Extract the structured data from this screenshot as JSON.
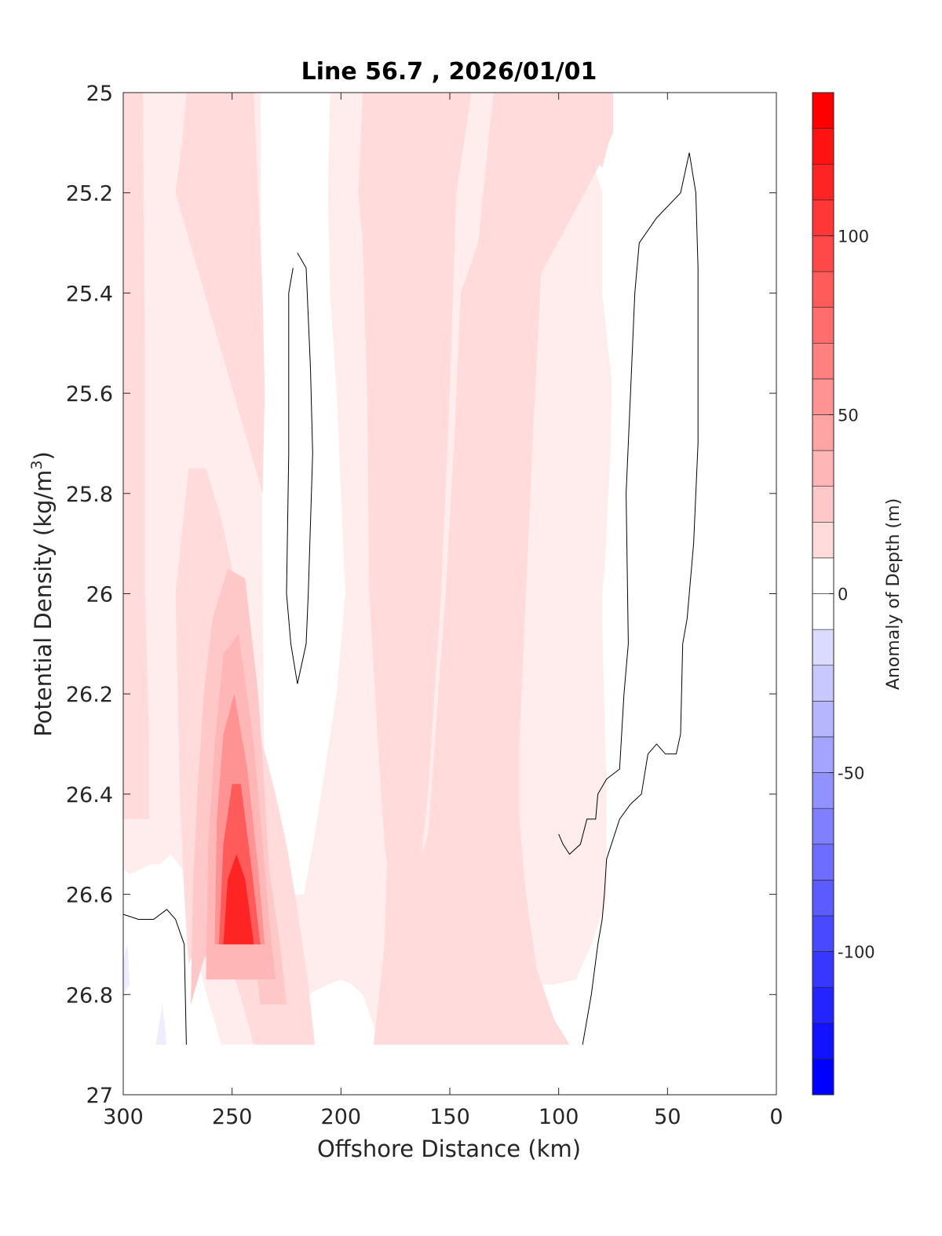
{
  "chart_data": {
    "type": "contour",
    "title": "Line 56.7 , 2026/01/01",
    "xlabel": "Offshore Distance (km)",
    "ylabel_prefix": "Potential Density (kg/m",
    "ylabel_sup": "3",
    "ylabel_suffix": ")",
    "xlim": [
      300,
      0
    ],
    "ylim": [
      27,
      25
    ],
    "x_reversed": true,
    "y_reversed": true,
    "xticks": [
      300,
      250,
      200,
      150,
      100,
      50,
      0
    ],
    "xtick_labels": [
      "300",
      "250",
      "200",
      "150",
      "100",
      "50",
      "0"
    ],
    "yticks": [
      25,
      25.2,
      25.4,
      25.6,
      25.8,
      26,
      26.2,
      26.4,
      26.6,
      26.8,
      27
    ],
    "ytick_labels": [
      "25",
      "25.2",
      "25.4",
      "25.6",
      "25.8",
      "26",
      "26.2",
      "26.4",
      "26.6",
      "26.8",
      "27"
    ],
    "grid": false,
    "colorbar": {
      "label": "Anomaly of Depth (m)",
      "clim": [
        -140,
        140
      ],
      "level_step": 10,
      "ticks": [
        -100,
        -50,
        0,
        50,
        100
      ],
      "tick_labels": [
        "-100",
        "-50",
        "0",
        "50",
        "100"
      ],
      "neg_color": "#0000ff",
      "pos_color": "#ff0000",
      "zero_color": "#ffffff"
    },
    "filled_regions": [
      {
        "anomaly": 10,
        "points": [
          [
            300,
            26.55
          ],
          [
            297,
            26.56
          ],
          [
            292,
            26.55
          ],
          [
            287,
            26.54
          ],
          [
            283,
            26.54
          ],
          [
            278,
            26.52
          ],
          [
            273,
            26.55
          ],
          [
            270,
            26.65
          ],
          [
            263,
            26.78
          ],
          [
            255,
            26.9
          ],
          [
            219,
            26.9
          ],
          [
            215,
            26.8
          ],
          [
            206,
            26.78
          ],
          [
            200,
            26.77
          ],
          [
            195,
            26.78
          ],
          [
            190,
            26.8
          ],
          [
            182,
            26.9
          ],
          [
            165,
            26.9
          ],
          [
            162,
            26.79
          ],
          [
            158,
            26.74
          ],
          [
            153,
            26.72
          ],
          [
            145,
            26.72
          ],
          [
            135,
            26.73
          ],
          [
            128,
            26.76
          ],
          [
            120,
            26.79
          ],
          [
            111,
            26.78
          ],
          [
            102,
            26.78
          ],
          [
            92,
            26.77
          ],
          [
            85,
            26.7
          ],
          [
            77,
            26.6
          ],
          [
            76,
            26.45
          ],
          [
            78,
            26.3
          ],
          [
            80,
            26.0
          ],
          [
            75,
            25.8
          ],
          [
            75,
            25.6
          ],
          [
            80,
            25.4
          ],
          [
            80,
            25.2
          ],
          [
            87,
            25.1
          ],
          [
            92,
            25.03
          ],
          [
            100,
            25.0
          ],
          [
            128,
            25.0
          ],
          [
            150,
            25.0
          ],
          [
            175,
            25.0
          ],
          [
            200,
            25.0
          ],
          [
            218,
            25.0
          ],
          [
            235,
            25.0
          ],
          [
            262,
            25.0
          ],
          [
            280,
            25.0
          ],
          [
            292,
            25.0
          ],
          [
            298,
            25.0
          ],
          [
            300,
            25.0
          ]
        ]
      },
      {
        "anomaly": -10,
        "points": [
          [
            300,
            26.73
          ],
          [
            298,
            26.7
          ],
          [
            297,
            26.78
          ],
          [
            300,
            26.8
          ]
        ]
      },
      {
        "anomaly": -10,
        "points": [
          [
            285,
            26.9
          ],
          [
            282,
            26.82
          ],
          [
            280,
            26.9
          ]
        ]
      },
      {
        "anomaly": 0,
        "points": [
          [
            272,
            25.0
          ],
          [
            260,
            25.0
          ],
          [
            237,
            25.0
          ],
          [
            236,
            26.0
          ],
          [
            235,
            26.4
          ],
          [
            233,
            26.45
          ],
          [
            225,
            26.6
          ],
          [
            217,
            26.6
          ],
          [
            212,
            26.48
          ],
          [
            202,
            26.2
          ],
          [
            198,
            26.0
          ],
          [
            200,
            25.8
          ],
          [
            202,
            25.6
          ],
          [
            205,
            25.4
          ],
          [
            206,
            25.2
          ],
          [
            205,
            25.0
          ]
        ]
      },
      {
        "anomaly": 0,
        "points": [
          [
            220,
            25.5
          ],
          [
            222,
            25.35
          ],
          [
            216,
            25.4
          ],
          [
            215,
            25.6
          ],
          [
            214,
            25.8
          ],
          [
            216,
            26.0
          ],
          [
            218,
            26.12
          ],
          [
            221,
            26.0
          ],
          [
            222,
            25.8
          ]
        ]
      },
      {
        "anomaly": 0,
        "points": [
          [
            80,
            26.05
          ],
          [
            76,
            25.7
          ],
          [
            75,
            25.35
          ],
          [
            74,
            25.1
          ],
          [
            80,
            25.0
          ],
          [
            50,
            25.0
          ],
          [
            44,
            25.02
          ],
          [
            36,
            25.2
          ],
          [
            33,
            25.5
          ],
          [
            31,
            25.8
          ],
          [
            34,
            26.1
          ],
          [
            33,
            26.5
          ],
          [
            26,
            26.58
          ],
          [
            40,
            26.62
          ],
          [
            48,
            26.7
          ],
          [
            60,
            26.75
          ],
          [
            68,
            26.82
          ],
          [
            74,
            26.85
          ],
          [
            78,
            26.82
          ],
          [
            78,
            26.4
          ]
        ]
      },
      {
        "anomaly": 20,
        "points": [
          [
            300,
            25.0
          ],
          [
            291,
            25.0
          ],
          [
            290,
            25.5
          ],
          [
            290,
            26.0
          ],
          [
            288,
            26.3
          ],
          [
            288,
            26.45
          ],
          [
            300,
            26.45
          ]
        ]
      },
      {
        "anomaly": 20,
        "points": [
          [
            276,
            25.2
          ],
          [
            273,
            25.1
          ],
          [
            271,
            25.0
          ],
          [
            240,
            25.0
          ],
          [
            238,
            25.2
          ],
          [
            236,
            25.4
          ],
          [
            235,
            25.6
          ],
          [
            236,
            25.8
          ]
        ]
      },
      {
        "anomaly": 20,
        "points": [
          [
            176,
            25.0
          ],
          [
            190,
            25.0
          ],
          [
            192,
            25.2
          ],
          [
            190,
            25.3
          ],
          [
            188,
            25.6
          ],
          [
            187,
            26.0
          ],
          [
            183,
            26.3
          ],
          [
            180,
            26.5
          ],
          [
            172,
            26.75
          ],
          [
            165,
            26.6
          ],
          [
            160,
            26.4
          ],
          [
            157,
            26.2
          ],
          [
            154,
            26.0
          ],
          [
            150,
            25.6
          ],
          [
            147,
            25.2
          ],
          [
            140,
            25.0
          ]
        ]
      },
      {
        "anomaly": 20,
        "points": [
          [
            185,
            26.9
          ],
          [
            180,
            26.7
          ],
          [
            179,
            26.55
          ],
          [
            178,
            26.45
          ],
          [
            172,
            26.5
          ],
          [
            165,
            26.55
          ],
          [
            160,
            26.48
          ],
          [
            157,
            26.3
          ],
          [
            152,
            26.0
          ],
          [
            148,
            25.7
          ],
          [
            145,
            25.4
          ],
          [
            137,
            25.3
          ],
          [
            130,
            25.0
          ],
          [
            75,
            25.0
          ],
          [
            75,
            25.08
          ],
          [
            82,
            25.15
          ],
          [
            88,
            25.2
          ],
          [
            98,
            25.28
          ],
          [
            108,
            25.36
          ],
          [
            112,
            25.7
          ],
          [
            115,
            26.0
          ],
          [
            118,
            26.3
          ],
          [
            118,
            26.45
          ],
          [
            115,
            26.6
          ],
          [
            110,
            26.75
          ],
          [
            102,
            26.85
          ],
          [
            95,
            26.9
          ]
        ]
      },
      {
        "anomaly": 20,
        "points": [
          [
            126,
            25.0
          ],
          [
            102,
            25.0
          ],
          [
            78,
            25.0
          ],
          [
            77,
            25.1
          ],
          [
            80,
            25.15
          ],
          [
            86,
            25.12
          ],
          [
            93,
            25.15
          ],
          [
            102,
            25.05
          ],
          [
            112,
            25.03
          ],
          [
            120,
            25.05
          ],
          [
            125,
            25.04
          ]
        ]
      },
      {
        "anomaly": 20,
        "points": [
          [
            270,
            25.75
          ],
          [
            262,
            25.75
          ],
          [
            255,
            25.85
          ],
          [
            250,
            25.95
          ],
          [
            245,
            26.05
          ],
          [
            240,
            26.2
          ],
          [
            236,
            26.3
          ],
          [
            230,
            26.4
          ],
          [
            225,
            26.5
          ],
          [
            220,
            26.63
          ],
          [
            215,
            26.78
          ],
          [
            212,
            26.9
          ],
          [
            240,
            26.9
          ],
          [
            245,
            26.82
          ],
          [
            250,
            26.75
          ],
          [
            255,
            26.72
          ],
          [
            260,
            26.7
          ],
          [
            265,
            26.7
          ],
          [
            268,
            26.72
          ],
          [
            270,
            26.74
          ],
          [
            272,
            26.6
          ],
          [
            274,
            26.4
          ],
          [
            275,
            26.2
          ],
          [
            276,
            26.0
          ]
        ]
      },
      {
        "anomaly": 30,
        "points": [
          [
            269,
            26.82
          ],
          [
            268,
            26.6
          ],
          [
            266,
            26.4
          ],
          [
            263,
            26.2
          ],
          [
            259,
            26.05
          ],
          [
            252,
            25.95
          ],
          [
            244,
            25.97
          ],
          [
            238,
            26.2
          ],
          [
            235,
            26.4
          ],
          [
            233,
            26.55
          ],
          [
            228,
            26.7
          ],
          [
            225,
            26.82
          ],
          [
            237,
            26.82
          ],
          [
            240,
            26.7
          ],
          [
            248,
            26.69
          ],
          [
            257,
            26.69
          ],
          [
            263,
            26.73
          ]
        ]
      },
      {
        "anomaly": 40,
        "points": [
          [
            262,
            26.77
          ],
          [
            261,
            26.5
          ],
          [
            258,
            26.3
          ],
          [
            254,
            26.12
          ],
          [
            247,
            26.08
          ],
          [
            240,
            26.3
          ],
          [
            236,
            26.5
          ],
          [
            233,
            26.65
          ],
          [
            230,
            26.77
          ]
        ]
      },
      {
        "anomaly": 60,
        "points": [
          [
            258,
            26.7
          ],
          [
            257,
            26.45
          ],
          [
            254,
            26.28
          ],
          [
            249,
            26.2
          ],
          [
            243,
            26.35
          ],
          [
            238,
            26.55
          ],
          [
            235,
            26.7
          ]
        ]
      },
      {
        "anomaly": 90,
        "points": [
          [
            256,
            26.7
          ],
          [
            254,
            26.5
          ],
          [
            250,
            26.38
          ],
          [
            246,
            26.38
          ],
          [
            241,
            26.55
          ],
          [
            237,
            26.7
          ]
        ]
      },
      {
        "anomaly": 120,
        "points": [
          [
            254,
            26.7
          ],
          [
            252,
            26.57
          ],
          [
            248,
            26.52
          ],
          [
            244,
            26.57
          ],
          [
            240,
            26.7
          ]
        ]
      }
    ],
    "contour_lines_zero": [
      [
        [
          220,
          25.32
        ],
        [
          216,
          25.35
        ],
        [
          214,
          25.55
        ],
        [
          213,
          25.72
        ],
        [
          215,
          26.0
        ],
        [
          216,
          26.1
        ],
        [
          220,
          26.18
        ],
        [
          223,
          26.1
        ],
        [
          225,
          26.0
        ],
        [
          224,
          25.72
        ],
        [
          224,
          25.5
        ],
        [
          224,
          25.4
        ],
        [
          222,
          25.35
        ]
      ],
      [
        [
          300,
          26.64
        ],
        [
          293,
          26.65
        ],
        [
          286,
          26.65
        ],
        [
          280,
          26.63
        ],
        [
          276,
          26.65
        ],
        [
          272,
          26.7
        ],
        [
          271,
          26.9
        ]
      ],
      [
        [
          40,
          25.12
        ],
        [
          37,
          25.2
        ],
        [
          36,
          25.35
        ],
        [
          36,
          25.7
        ],
        [
          38,
          25.9
        ],
        [
          41,
          26.05
        ],
        [
          43,
          26.1
        ],
        [
          44,
          26.28
        ],
        [
          46,
          26.32
        ],
        [
          51,
          26.32
        ],
        [
          55,
          26.3
        ],
        [
          59,
          26.32
        ],
        [
          62,
          26.4
        ],
        [
          67,
          26.42
        ],
        [
          72,
          26.45
        ],
        [
          78,
          26.53
        ],
        [
          79,
          26.6
        ],
        [
          80,
          26.65
        ],
        [
          82,
          26.7
        ],
        [
          85,
          26.8
        ],
        [
          89,
          26.9
        ]
      ],
      [
        [
          40,
          25.12
        ],
        [
          44,
          25.2
        ],
        [
          55,
          25.25
        ],
        [
          63,
          25.3
        ],
        [
          65,
          25.4
        ],
        [
          67,
          25.6
        ],
        [
          69,
          25.8
        ],
        [
          68,
          26.1
        ],
        [
          70,
          26.2
        ],
        [
          72,
          26.35
        ],
        [
          78,
          26.37
        ],
        [
          82,
          26.4
        ],
        [
          83,
          26.45
        ],
        [
          87,
          26.45
        ],
        [
          90,
          26.5
        ],
        [
          95,
          26.52
        ],
        [
          98,
          26.5
        ],
        [
          100,
          26.48
        ]
      ]
    ]
  }
}
